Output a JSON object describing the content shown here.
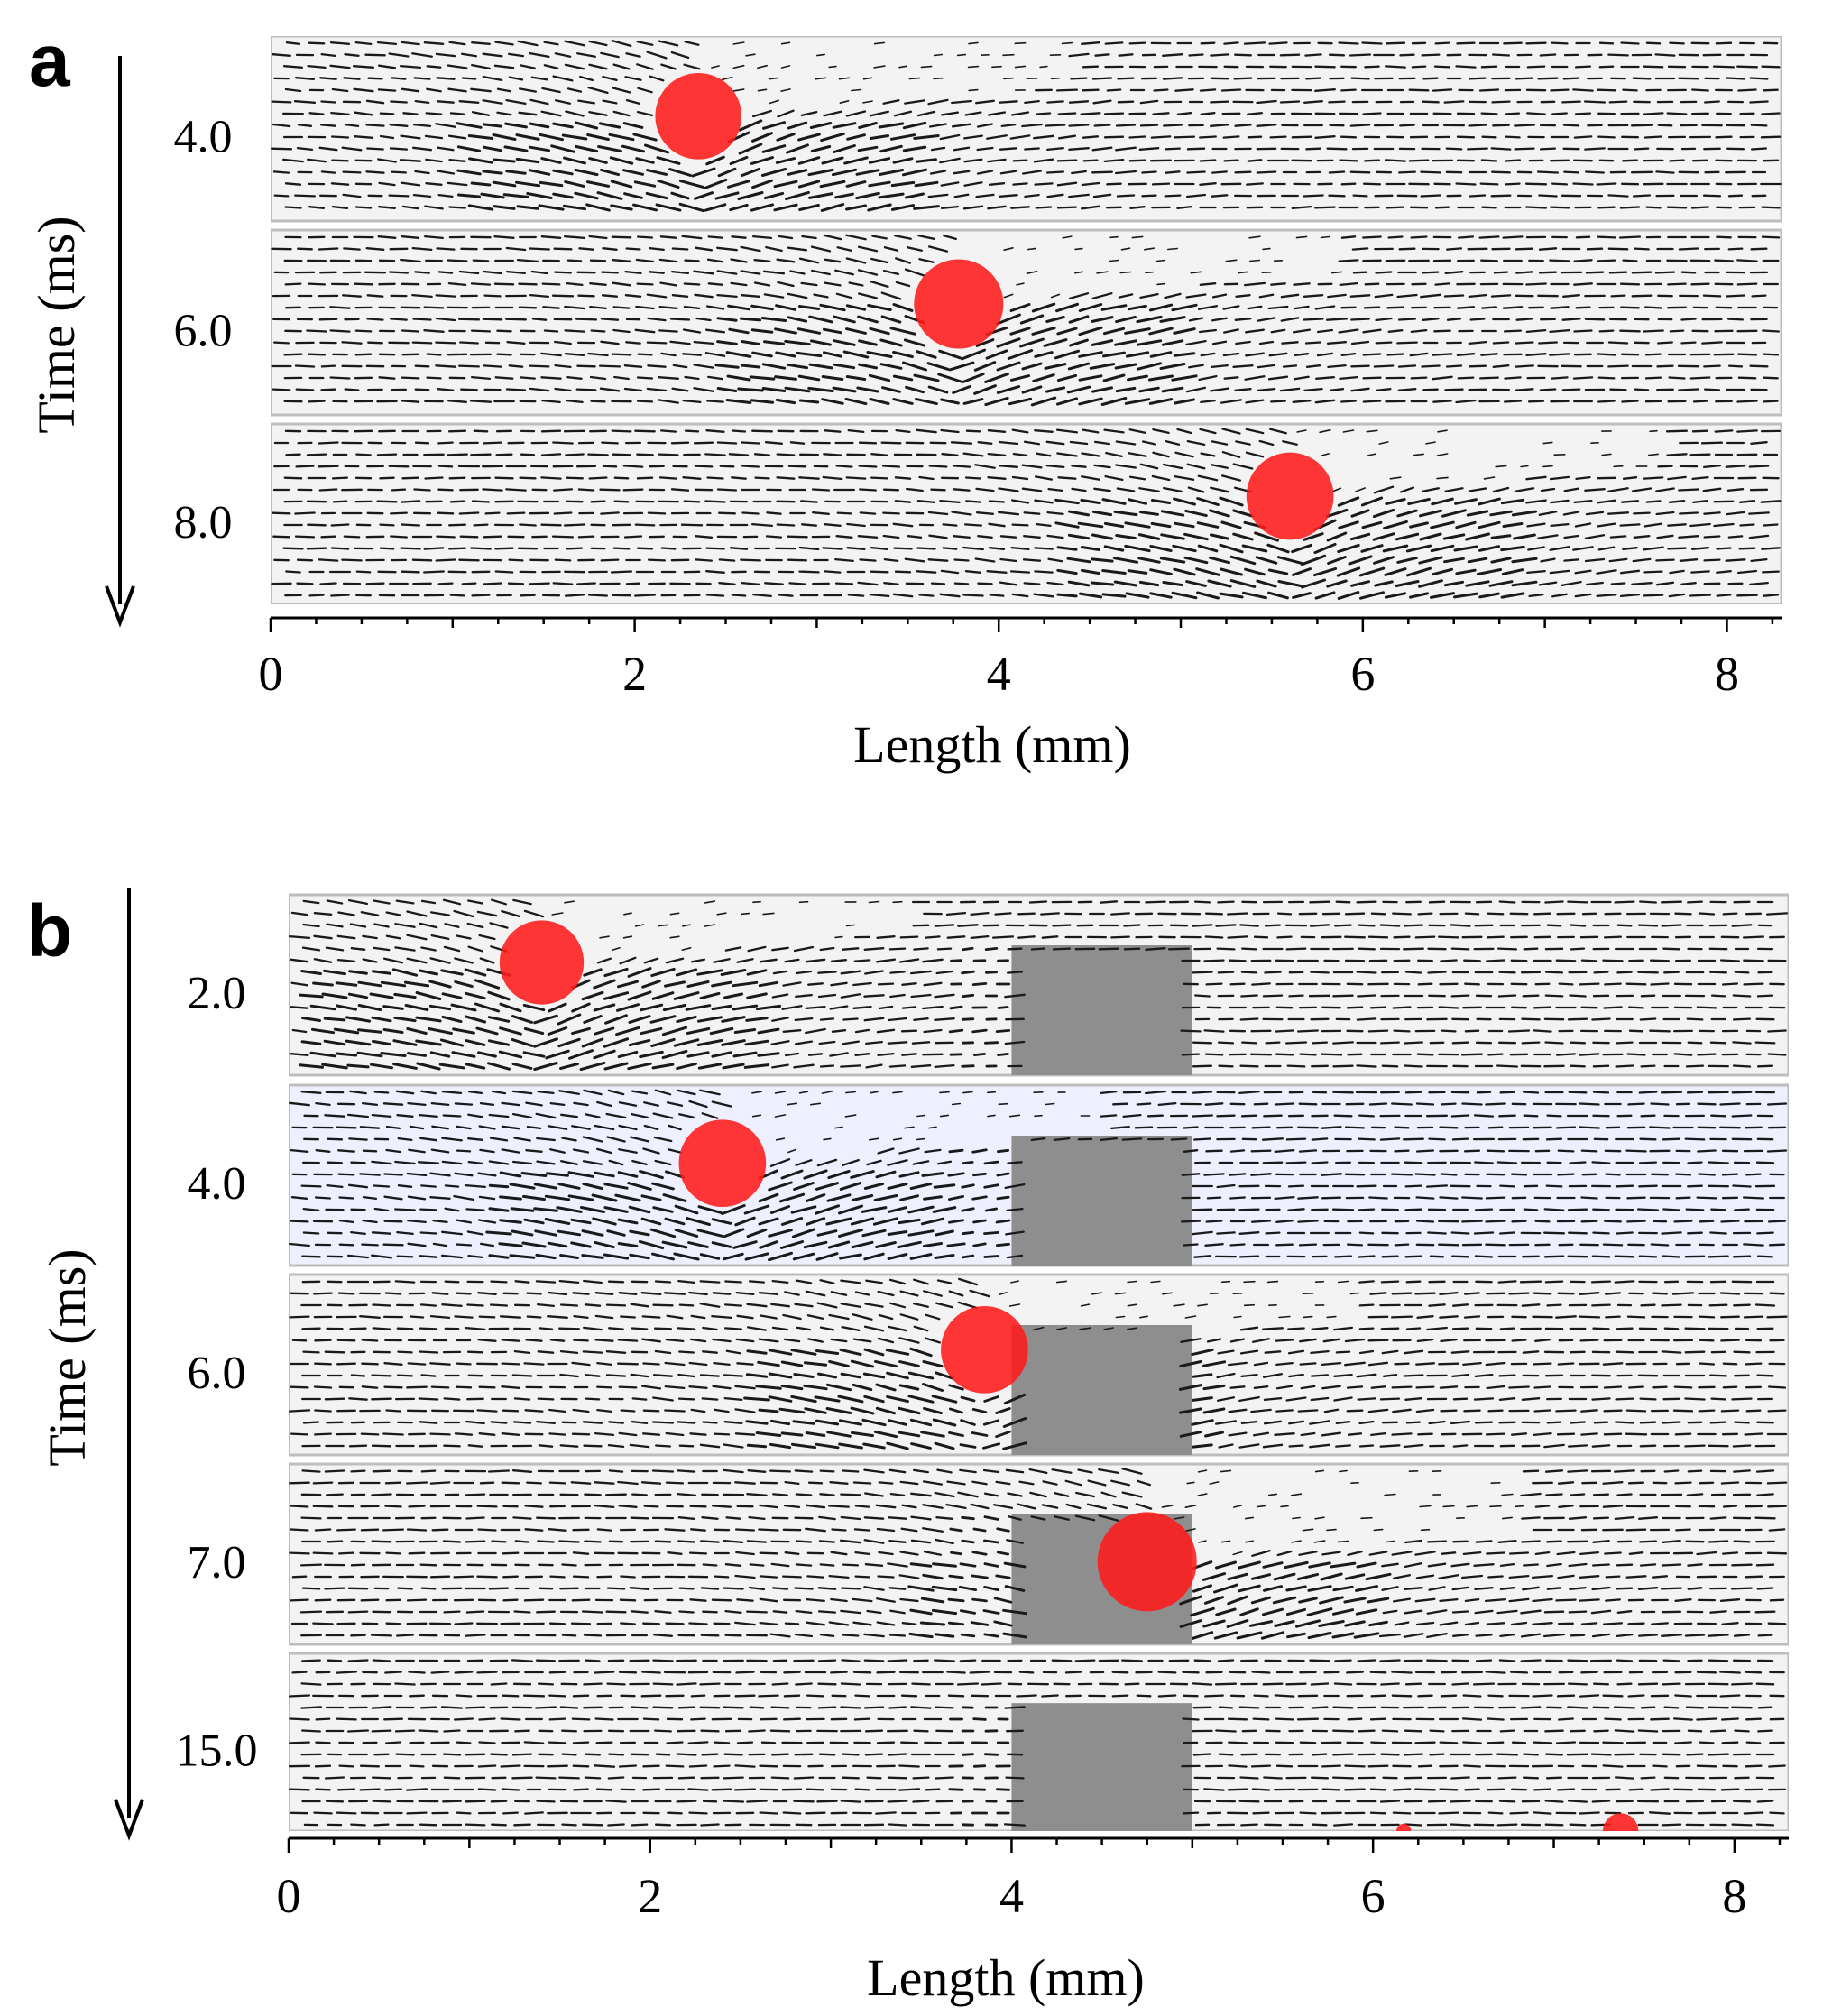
{
  "chart_data": [
    {
      "type": "vector-field-frames",
      "panel_label": "a",
      "xlabel": "Length (mm)",
      "ylabel": "Time (ms)",
      "xlim": [
        0,
        8.3
      ],
      "xticks": [
        "0",
        "2",
        "4",
        "6",
        "8"
      ],
      "frames": [
        {
          "time_label": "4.0",
          "time_ms": 4.0,
          "droplets_mm": [
            {
              "x": 2.35,
              "y": 0.68,
              "r": 0.28
            }
          ]
        },
        {
          "time_label": "6.0",
          "time_ms": 6.0,
          "droplets_mm": [
            {
              "x": 3.78,
              "y": 0.72,
              "r": 0.29
            }
          ]
        },
        {
          "time_label": "8.0",
          "time_ms": 8.0,
          "droplets_mm": [
            {
              "x": 5.6,
              "y": 0.72,
              "r": 0.29
            }
          ]
        }
      ],
      "obstacle_mm": null
    },
    {
      "type": "vector-field-frames",
      "panel_label": "b",
      "xlabel": "Length (mm)",
      "ylabel": "Time (ms)",
      "xlim": [
        0,
        8.3
      ],
      "xticks": [
        "0",
        "2",
        "4",
        "6",
        "8"
      ],
      "obstacle_mm": {
        "x_start": 4.0,
        "x_end": 5.0,
        "height_fraction": 0.72
      },
      "frames": [
        {
          "time_label": "2.0",
          "time_ms": 2.0,
          "droplets_mm": [
            {
              "x": 1.4,
              "y": 0.75,
              "r": 0.28
            }
          ]
        },
        {
          "time_label": "4.0",
          "time_ms": 4.0,
          "droplets_mm": [
            {
              "x": 2.4,
              "y": 0.68,
              "r": 0.29
            }
          ]
        },
        {
          "time_label": "6.0",
          "time_ms": 6.0,
          "droplets_mm": [
            {
              "x": 3.85,
              "y": 0.7,
              "r": 0.29
            }
          ]
        },
        {
          "time_label": "7.0",
          "time_ms": 7.0,
          "droplets_mm": [
            {
              "x": 4.75,
              "y": 0.55,
              "r": 0.33
            }
          ]
        },
        {
          "time_label": "15.0",
          "time_ms": 15.0,
          "droplets_mm": [
            {
              "x": 6.17,
              "y": 0.0,
              "r": 0.05
            },
            {
              "x": 7.37,
              "y": 0.0,
              "r": 0.12
            }
          ]
        }
      ]
    }
  ],
  "colors": {
    "droplet": "#ff1a1a",
    "vector": "#1a1a1a",
    "obstacle": "#8e8e8e",
    "channel_background": "#f3f3f3",
    "highlight_frame": "#eef0ff"
  }
}
